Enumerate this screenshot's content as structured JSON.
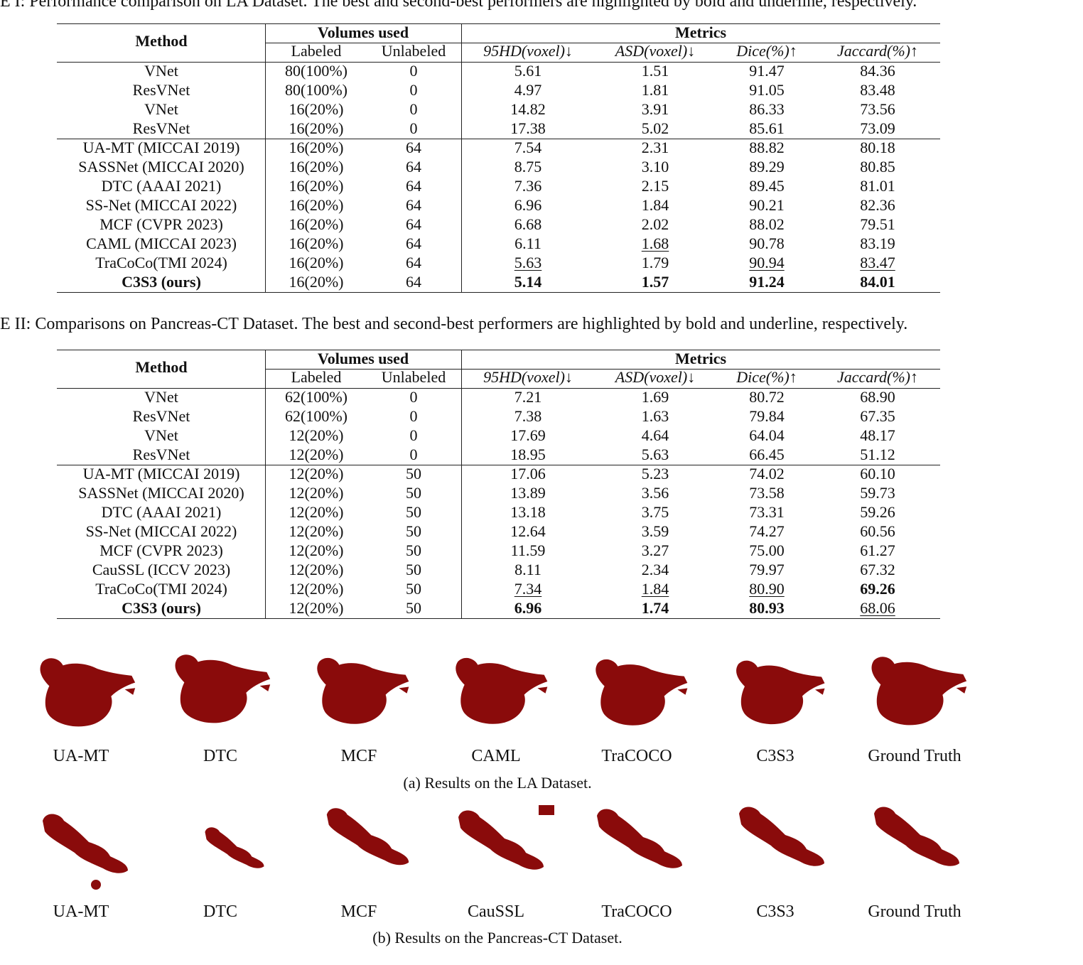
{
  "tables": [
    {
      "caption": "E I: Performance comparison on LA Dataset. The best and second-best performers are highlighted by bold and underline, respectively.",
      "headers": {
        "method": "Method",
        "volumes": "Volumes used",
        "metrics": "Metrics",
        "columns": [
          "Labeled",
          "Unlabeled",
          "95HD(voxel)↓",
          "ASD(voxel)↓",
          "Dice(%)↑",
          "Jaccard(%)↑"
        ]
      },
      "groups": [
        [
          [
            "VNet",
            "80(100%)",
            "0",
            "5.61",
            "1.51",
            "91.47",
            "84.36"
          ],
          [
            "ResVNet",
            "80(100%)",
            "0",
            "4.97",
            "1.81",
            "91.05",
            "83.48"
          ],
          [
            "VNet",
            "16(20%)",
            "0",
            "14.82",
            "3.91",
            "86.33",
            "73.56"
          ],
          [
            "ResVNet",
            "16(20%)",
            "0",
            "17.38",
            "5.02",
            "85.61",
            "73.09"
          ]
        ],
        [
          [
            "UA-MT (MICCAI 2019)",
            "16(20%)",
            "64",
            "7.54",
            "2.31",
            "88.82",
            "80.18"
          ],
          [
            "SASSNet (MICCAI 2020)",
            "16(20%)",
            "64",
            "8.75",
            "3.10",
            "89.29",
            "80.85"
          ],
          [
            "DTC (AAAI 2021)",
            "16(20%)",
            "64",
            "7.36",
            "2.15",
            "89.45",
            "81.01"
          ],
          [
            "SS-Net (MICCAI 2022)",
            "16(20%)",
            "64",
            "6.96",
            "1.84",
            "90.21",
            "82.36"
          ],
          [
            "MCF (CVPR 2023)",
            "16(20%)",
            "64",
            "6.68",
            "2.02",
            "88.02",
            "79.51"
          ],
          [
            "CAML (MICCAI 2023)",
            "16(20%)",
            "64",
            "6.11",
            {
              "text": "1.68",
              "style": "underline"
            },
            "90.78",
            "83.19"
          ],
          [
            "TraCoCo(TMI 2024)",
            "16(20%)",
            "64",
            {
              "text": "5.63",
              "style": "underline"
            },
            "1.79",
            {
              "text": "90.94",
              "style": "underline"
            },
            {
              "text": "83.47",
              "style": "underline"
            }
          ],
          [
            {
              "text": "C3S3 (ours)",
              "style": "bold"
            },
            "16(20%)",
            "64",
            {
              "text": "5.14",
              "style": "bold"
            },
            {
              "text": "1.57",
              "style": "bold"
            },
            {
              "text": "91.24",
              "style": "bold"
            },
            {
              "text": "84.01",
              "style": "bold"
            }
          ]
        ]
      ]
    },
    {
      "caption": "E II: Comparisons on Pancreas-CT Dataset. The best and second-best performers are highlighted by bold and underline, respectively.",
      "headers": {
        "method": "Method",
        "volumes": "Volumes used",
        "metrics": "Metrics",
        "columns": [
          "Labeled",
          "Unlabeled",
          "95HD(voxel)↓",
          "ASD(voxel)↓",
          "Dice(%)↑",
          "Jaccard(%)↑"
        ]
      },
      "groups": [
        [
          [
            "VNet",
            "62(100%)",
            "0",
            "7.21",
            "1.69",
            "80.72",
            "68.90"
          ],
          [
            "ResVNet",
            "62(100%)",
            "0",
            "7.38",
            "1.63",
            "79.84",
            "67.35"
          ],
          [
            "VNet",
            "12(20%)",
            "0",
            "17.69",
            "4.64",
            "64.04",
            "48.17"
          ],
          [
            "ResVNet",
            "12(20%)",
            "0",
            "18.95",
            "5.63",
            "66.45",
            "51.12"
          ]
        ],
        [
          [
            "UA-MT (MICCAI 2019)",
            "12(20%)",
            "50",
            "17.06",
            "5.23",
            "74.02",
            "60.10"
          ],
          [
            "SASSNet (MICCAI 2020)",
            "12(20%)",
            "50",
            "13.89",
            "3.56",
            "73.58",
            "59.73"
          ],
          [
            "DTC (AAAI 2021)",
            "12(20%)",
            "50",
            "13.18",
            "3.75",
            "73.31",
            "59.26"
          ],
          [
            "SS-Net (MICCAI 2022)",
            "12(20%)",
            "50",
            "12.64",
            "3.59",
            "74.27",
            "60.56"
          ],
          [
            "MCF (CVPR 2023)",
            "12(20%)",
            "50",
            "11.59",
            "3.27",
            "75.00",
            "61.27"
          ],
          [
            "CauSSL (ICCV 2023)",
            "12(20%)",
            "50",
            "8.11",
            "2.34",
            "79.97",
            "67.32"
          ],
          [
            "TraCoCo(TMI 2024)",
            "12(20%)",
            "50",
            {
              "text": "7.34",
              "style": "underline"
            },
            {
              "text": "1.84",
              "style": "underline"
            },
            {
              "text": "80.90",
              "style": "underline"
            },
            {
              "text": "69.26",
              "style": "bold"
            }
          ],
          [
            {
              "text": "C3S3 (ours)",
              "style": "bold"
            },
            "12(20%)",
            "50",
            {
              "text": "6.96",
              "style": "bold"
            },
            {
              "text": "1.74",
              "style": "bold"
            },
            {
              "text": "80.93",
              "style": "bold"
            },
            {
              "text": "68.06",
              "style": "underline"
            }
          ]
        ]
      ]
    }
  ],
  "figures": [
    {
      "labels": [
        "UA-MT",
        "DTC",
        "MCF",
        "CAML",
        "TraCOCO",
        "C3S3",
        "Ground Truth"
      ],
      "caption": "(a) Results on the LA Dataset."
    },
    {
      "labels": [
        "UA-MT",
        "DTC",
        "MCF",
        "CauSSL",
        "TraCOCO",
        "C3S3",
        "Ground Truth"
      ],
      "caption": "(b) Results on the Pancreas-CT Dataset."
    }
  ]
}
